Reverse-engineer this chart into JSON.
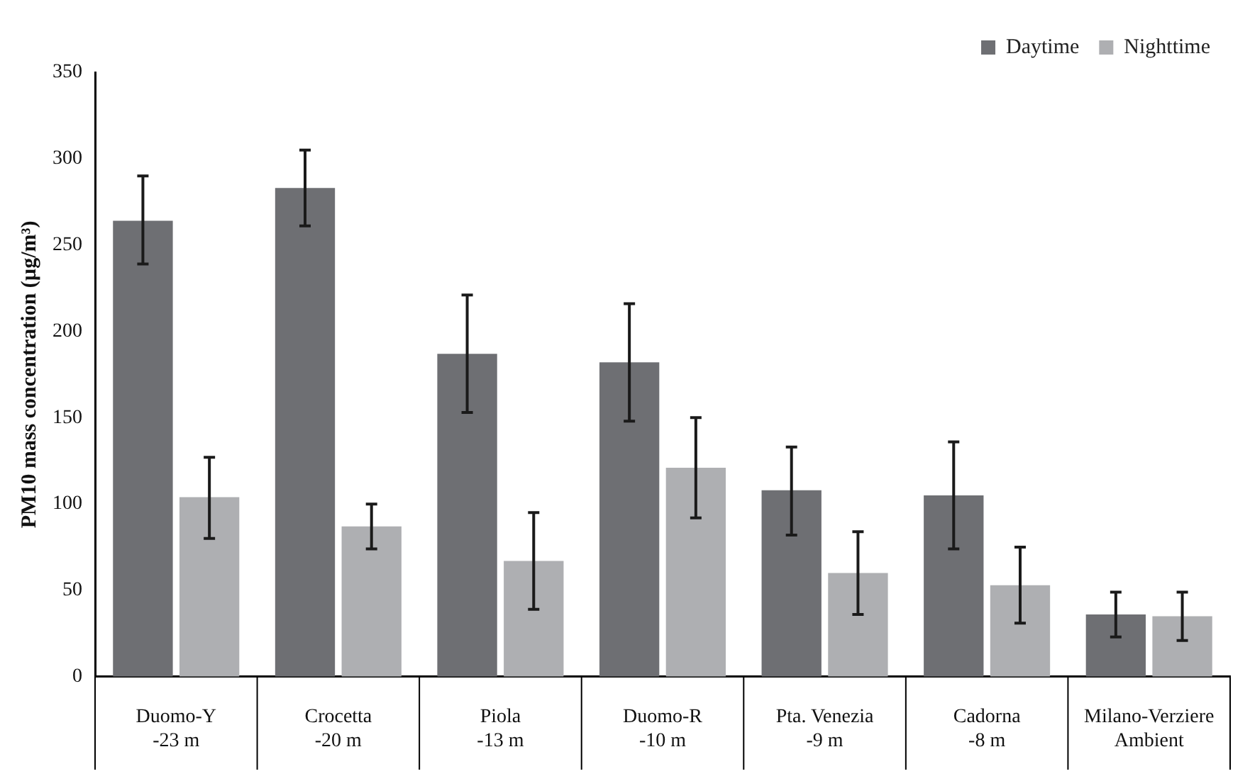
{
  "chart_data": {
    "type": "bar",
    "ylabel": "PM10 mass concentration (µg/m³)",
    "categories": [
      "Duomo-Y\n-23 m",
      "Crocetta\n-20 m",
      "Piola\n-13 m",
      "Duomo-R\n-10 m",
      "Pta. Venezia\n-9 m",
      "Cadorna\n-8 m",
      "Milano-Verziere\nAmbient"
    ],
    "series": [
      {
        "name": "Daytime",
        "color": "#6e6f73",
        "values": [
          264,
          283,
          187,
          182,
          108,
          105,
          36
        ],
        "errors": [
          [
            239,
            290
          ],
          [
            261,
            305
          ],
          [
            153,
            221
          ],
          [
            148,
            216
          ],
          [
            82,
            133
          ],
          [
            74,
            136
          ],
          [
            23,
            49
          ]
        ]
      },
      {
        "name": "Nighttime",
        "color": "#aeafb2",
        "values": [
          104,
          87,
          67,
          121,
          60,
          53,
          35
        ],
        "errors": [
          [
            80,
            127
          ],
          [
            74,
            100
          ],
          [
            39,
            95
          ],
          [
            92,
            150
          ],
          [
            36,
            84
          ],
          [
            31,
            75
          ],
          [
            21,
            49
          ]
        ]
      }
    ],
    "ylim": [
      0,
      350
    ],
    "yticks": [
      0,
      50,
      100,
      150,
      200,
      250,
      300,
      350
    ],
    "grid": false,
    "legend": "top right"
  }
}
